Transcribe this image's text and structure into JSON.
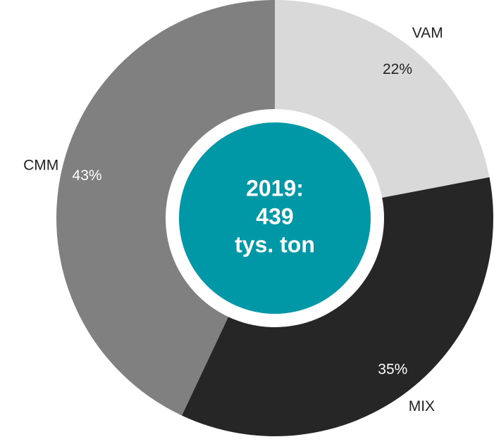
{
  "chart_data": {
    "type": "donut",
    "categories": [
      "VAM",
      "MIX",
      "CMM"
    ],
    "values": [
      22,
      35,
      43
    ],
    "value_labels": [
      "22%",
      "35%",
      "43%"
    ],
    "colors": [
      "#d9d9d9",
      "#262626",
      "#808080"
    ],
    "center_text": [
      "2019:",
      "439",
      "tys. ton"
    ],
    "center_color": "#0097a7"
  }
}
